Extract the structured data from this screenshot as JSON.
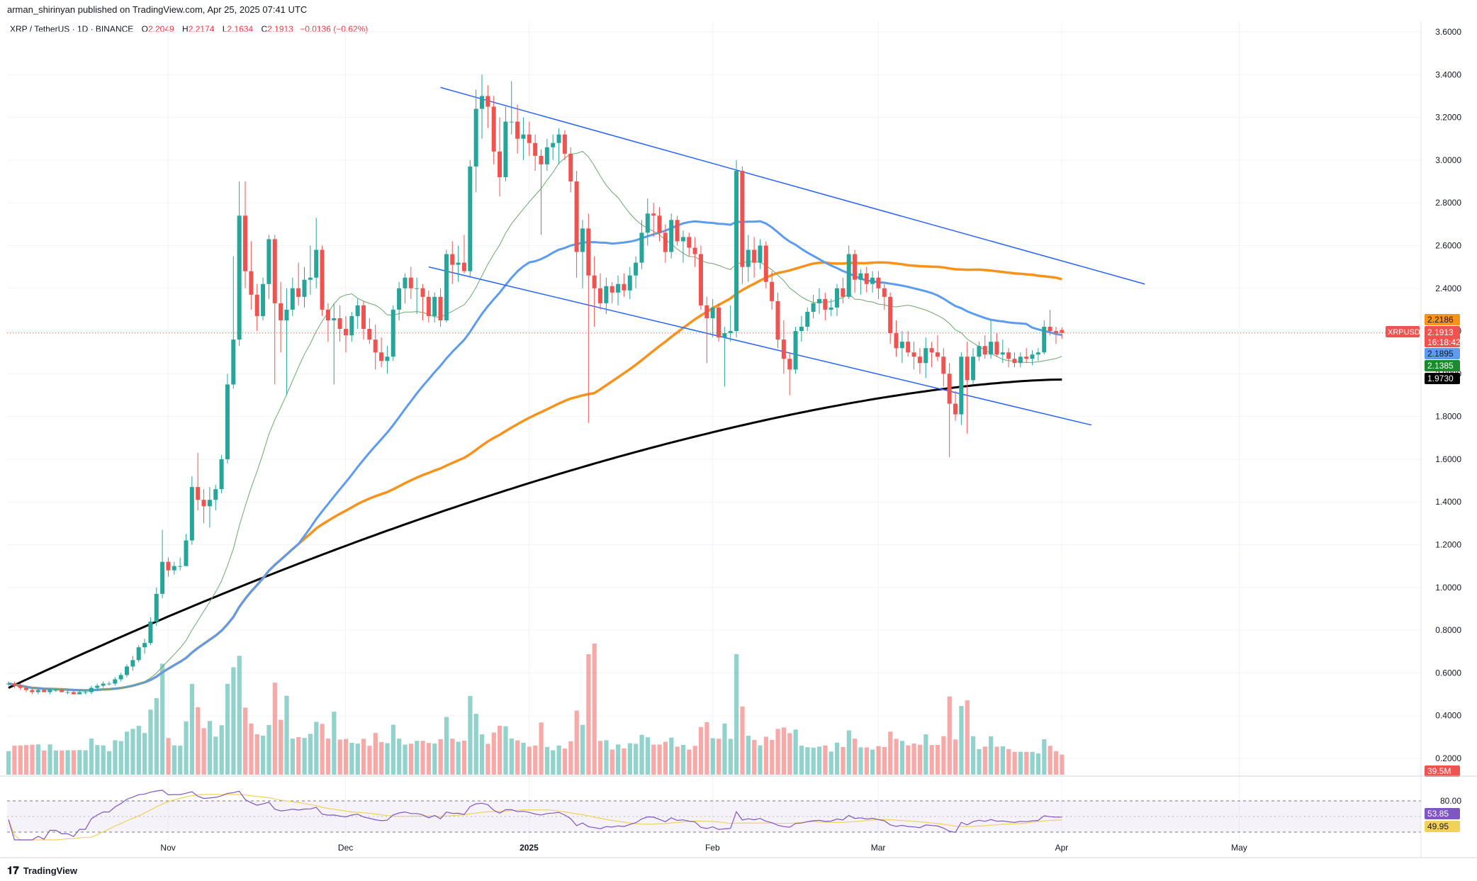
{
  "header": {
    "publisher": "arman_shirinyan published on TradingView.com, Apr 25, 2025 07:41 UTC"
  },
  "legend": {
    "symbol": "XRP / TetherUS · 1D · BINANCE",
    "o_label": "O",
    "o": "2.2049",
    "h_label": "H",
    "h": "2.2174",
    "l_label": "L",
    "l": "2.1634",
    "c_label": "C",
    "c": "2.1913",
    "change": "−0.0136 (−0.62%)"
  },
  "colors": {
    "up": "#26A69A",
    "down": "#EF5350",
    "sma50": "#5B9CF0",
    "sma100": "#F7931A",
    "sma200": "#000000",
    "sma20": "#6BA86B",
    "trendline": "#2962FF",
    "rsi": "#7E57C2",
    "rsi_ma": "#F2D15A"
  },
  "chart_data": {
    "type": "candlestick",
    "symbol": "XRPUSDT",
    "timeframe": "1D",
    "x_ticks": [
      "Nov",
      "Dec",
      "2025",
      "Feb",
      "Mar",
      "Apr",
      "May"
    ],
    "y_ticks": [
      "3.6000",
      "3.4000",
      "3.2000",
      "3.0000",
      "2.8000",
      "2.6000",
      "2.4000",
      "2.2000",
      "2.0000",
      "1.8000",
      "1.6000",
      "1.4000",
      "1.2000",
      "1.0000",
      "0.8000",
      "0.6000",
      "0.4000",
      "0.2000"
    ],
    "ylim": [
      0.2,
      3.6
    ],
    "candles_ohlc": [
      [
        0.55,
        0.56,
        0.54,
        0.55
      ],
      [
        0.55,
        0.56,
        0.53,
        0.54
      ],
      [
        0.54,
        0.55,
        0.52,
        0.53
      ],
      [
        0.53,
        0.54,
        0.51,
        0.52
      ],
      [
        0.52,
        0.53,
        0.5,
        0.51
      ],
      [
        0.51,
        0.53,
        0.5,
        0.52
      ],
      [
        0.52,
        0.53,
        0.51,
        0.51
      ],
      [
        0.51,
        0.53,
        0.5,
        0.52
      ],
      [
        0.52,
        0.53,
        0.51,
        0.52
      ],
      [
        0.52,
        0.53,
        0.51,
        0.51
      ],
      [
        0.51,
        0.52,
        0.5,
        0.51
      ],
      [
        0.51,
        0.52,
        0.5,
        0.5
      ],
      [
        0.5,
        0.52,
        0.5,
        0.51
      ],
      [
        0.51,
        0.52,
        0.5,
        0.51
      ],
      [
        0.51,
        0.54,
        0.5,
        0.53
      ],
      [
        0.53,
        0.55,
        0.52,
        0.54
      ],
      [
        0.54,
        0.56,
        0.53,
        0.55
      ],
      [
        0.55,
        0.56,
        0.54,
        0.55
      ],
      [
        0.55,
        0.58,
        0.54,
        0.57
      ],
      [
        0.57,
        0.6,
        0.56,
        0.59
      ],
      [
        0.59,
        0.64,
        0.58,
        0.63
      ],
      [
        0.63,
        0.68,
        0.61,
        0.66
      ],
      [
        0.66,
        0.73,
        0.65,
        0.72
      ],
      [
        0.72,
        0.76,
        0.69,
        0.74
      ],
      [
        0.74,
        0.86,
        0.73,
        0.84
      ],
      [
        0.84,
        1.0,
        0.82,
        0.97
      ],
      [
        0.97,
        1.27,
        0.95,
        1.12
      ],
      [
        1.12,
        1.14,
        1.05,
        1.08
      ],
      [
        1.08,
        1.12,
        1.06,
        1.1
      ],
      [
        1.1,
        1.14,
        1.08,
        1.1
      ],
      [
        1.1,
        1.25,
        1.1,
        1.22
      ],
      [
        1.22,
        1.52,
        1.2,
        1.47
      ],
      [
        1.47,
        1.63,
        1.36,
        1.41
      ],
      [
        1.41,
        1.46,
        1.3,
        1.38
      ],
      [
        1.38,
        1.47,
        1.28,
        1.41
      ],
      [
        1.41,
        1.48,
        1.36,
        1.46
      ],
      [
        1.46,
        1.62,
        1.44,
        1.6
      ],
      [
        1.6,
        2.0,
        1.58,
        1.95
      ],
      [
        1.95,
        2.55,
        1.93,
        2.16
      ],
      [
        2.16,
        2.9,
        2.13,
        2.74
      ],
      [
        2.74,
        2.9,
        2.4,
        2.48
      ],
      [
        2.48,
        2.62,
        2.3,
        2.37
      ],
      [
        2.37,
        2.42,
        2.2,
        2.27
      ],
      [
        2.27,
        2.45,
        2.25,
        2.42
      ],
      [
        2.42,
        2.65,
        2.35,
        2.63
      ],
      [
        2.63,
        2.65,
        1.95,
        2.33
      ],
      [
        2.33,
        2.43,
        2.1,
        2.25
      ],
      [
        2.25,
        2.4,
        1.9,
        2.3
      ],
      [
        2.3,
        2.45,
        2.27,
        2.4
      ],
      [
        2.4,
        2.52,
        2.32,
        2.36
      ],
      [
        2.36,
        2.5,
        2.31,
        2.44
      ],
      [
        2.44,
        2.6,
        2.37,
        2.45
      ],
      [
        2.45,
        2.73,
        2.4,
        2.58
      ],
      [
        2.58,
        2.6,
        2.27,
        2.3
      ],
      [
        2.3,
        2.33,
        2.15,
        2.25
      ],
      [
        2.25,
        2.33,
        1.95,
        2.26
      ],
      [
        2.26,
        2.32,
        2.15,
        2.21
      ],
      [
        2.21,
        2.27,
        2.1,
        2.18
      ],
      [
        2.18,
        2.29,
        2.15,
        2.27
      ],
      [
        2.27,
        2.35,
        2.21,
        2.32
      ],
      [
        2.32,
        2.34,
        2.16,
        2.21
      ],
      [
        2.21,
        2.26,
        2.14,
        2.16
      ],
      [
        2.16,
        2.23,
        2.02,
        2.1
      ],
      [
        2.1,
        2.17,
        2.03,
        2.06
      ],
      [
        2.06,
        2.13,
        2.0,
        2.08
      ],
      [
        2.08,
        2.32,
        2.06,
        2.3
      ],
      [
        2.3,
        2.43,
        2.25,
        2.4
      ],
      [
        2.4,
        2.47,
        2.33,
        2.45
      ],
      [
        2.45,
        2.5,
        2.35,
        2.4
      ],
      [
        2.4,
        2.45,
        2.28,
        2.4
      ],
      [
        2.4,
        2.42,
        2.25,
        2.36
      ],
      [
        2.36,
        2.39,
        2.24,
        2.27
      ],
      [
        2.27,
        2.38,
        2.24,
        2.36
      ],
      [
        2.36,
        2.4,
        2.22,
        2.25
      ],
      [
        2.25,
        2.58,
        2.24,
        2.56
      ],
      [
        2.56,
        2.62,
        2.42,
        2.51
      ],
      [
        2.51,
        2.6,
        2.43,
        2.52
      ],
      [
        2.52,
        2.65,
        2.47,
        2.48
      ],
      [
        2.48,
        3.0,
        2.45,
        2.97
      ],
      [
        2.97,
        3.33,
        2.85,
        3.24
      ],
      [
        3.24,
        3.4,
        3.1,
        3.3
      ],
      [
        3.3,
        3.35,
        3.15,
        3.25
      ],
      [
        3.25,
        3.3,
        2.98,
        3.04
      ],
      [
        3.04,
        3.2,
        2.83,
        2.92
      ],
      [
        2.92,
        3.25,
        2.9,
        3.18
      ],
      [
        3.18,
        3.37,
        3.12,
        3.18
      ],
      [
        3.18,
        3.26,
        3.03,
        3.1
      ],
      [
        3.1,
        3.2,
        3.0,
        3.12
      ],
      [
        3.12,
        3.18,
        3.02,
        3.08
      ],
      [
        3.08,
        3.12,
        2.95,
        3.02
      ],
      [
        3.02,
        3.05,
        2.65,
        2.98
      ],
      [
        2.98,
        3.1,
        2.95,
        3.06
      ],
      [
        3.06,
        3.12,
        3.0,
        3.08
      ],
      [
        3.08,
        3.15,
        2.98,
        3.12
      ],
      [
        3.12,
        3.14,
        3.0,
        3.03
      ],
      [
        3.03,
        3.06,
        2.85,
        2.9
      ],
      [
        2.9,
        2.95,
        2.45,
        2.57
      ],
      [
        2.57,
        2.72,
        2.4,
        2.68
      ],
      [
        2.68,
        2.75,
        1.77,
        2.46
      ],
      [
        2.46,
        2.55,
        2.22,
        2.4
      ],
      [
        2.4,
        2.47,
        2.3,
        2.33
      ],
      [
        2.33,
        2.45,
        2.28,
        2.41
      ],
      [
        2.41,
        2.43,
        2.33,
        2.38
      ],
      [
        2.38,
        2.46,
        2.32,
        2.42
      ],
      [
        2.42,
        2.47,
        2.36,
        2.39
      ],
      [
        2.39,
        2.5,
        2.35,
        2.46
      ],
      [
        2.46,
        2.55,
        2.4,
        2.52
      ],
      [
        2.52,
        2.72,
        2.49,
        2.66
      ],
      [
        2.66,
        2.82,
        2.6,
        2.75
      ],
      [
        2.75,
        2.8,
        2.64,
        2.74
      ],
      [
        2.74,
        2.78,
        2.62,
        2.66
      ],
      [
        2.66,
        2.7,
        2.52,
        2.57
      ],
      [
        2.57,
        2.75,
        2.54,
        2.72
      ],
      [
        2.72,
        2.74,
        2.6,
        2.62
      ],
      [
        2.62,
        2.67,
        2.52,
        2.64
      ],
      [
        2.64,
        2.66,
        2.55,
        2.59
      ],
      [
        2.59,
        2.64,
        2.5,
        2.56
      ],
      [
        2.56,
        2.6,
        2.3,
        2.32
      ],
      [
        2.32,
        2.36,
        2.05,
        2.26
      ],
      [
        2.26,
        2.35,
        2.17,
        2.31
      ],
      [
        2.31,
        2.33,
        2.15,
        2.17
      ],
      [
        2.17,
        2.22,
        1.94,
        2.19
      ],
      [
        2.19,
        2.32,
        2.15,
        2.2
      ],
      [
        2.2,
        3.0,
        2.17,
        2.95
      ],
      [
        2.95,
        2.97,
        2.42,
        2.5
      ],
      [
        2.5,
        2.65,
        2.43,
        2.58
      ],
      [
        2.58,
        2.64,
        2.45,
        2.52
      ],
      [
        2.52,
        2.63,
        2.49,
        2.6
      ],
      [
        2.6,
        2.62,
        2.4,
        2.43
      ],
      [
        2.43,
        2.48,
        2.3,
        2.34
      ],
      [
        2.34,
        2.38,
        2.12,
        2.16
      ],
      [
        2.16,
        2.25,
        2.0,
        2.07
      ],
      [
        2.07,
        2.1,
        1.9,
        2.02
      ],
      [
        2.02,
        2.22,
        2.0,
        2.2
      ],
      [
        2.2,
        2.27,
        2.15,
        2.22
      ],
      [
        2.22,
        2.31,
        2.2,
        2.29
      ],
      [
        2.29,
        2.37,
        2.26,
        2.33
      ],
      [
        2.33,
        2.4,
        2.28,
        2.35
      ],
      [
        2.35,
        2.38,
        2.25,
        2.3
      ],
      [
        2.3,
        2.35,
        2.27,
        2.31
      ],
      [
        2.31,
        2.42,
        2.27,
        2.4
      ],
      [
        2.4,
        2.45,
        2.33,
        2.36
      ],
      [
        2.36,
        2.6,
        2.35,
        2.56
      ],
      [
        2.56,
        2.58,
        2.38,
        2.44
      ],
      [
        2.44,
        2.49,
        2.37,
        2.47
      ],
      [
        2.47,
        2.5,
        2.38,
        2.42
      ],
      [
        2.42,
        2.48,
        2.38,
        2.45
      ],
      [
        2.45,
        2.48,
        2.35,
        2.4
      ],
      [
        2.4,
        2.42,
        2.3,
        2.36
      ],
      [
        2.36,
        2.38,
        2.14,
        2.19
      ],
      [
        2.19,
        2.25,
        2.08,
        2.12
      ],
      [
        2.12,
        2.2,
        2.05,
        2.15
      ],
      [
        2.15,
        2.2,
        2.08,
        2.1
      ],
      [
        2.1,
        2.15,
        2.02,
        2.08
      ],
      [
        2.08,
        2.12,
        2.0,
        2.05
      ],
      [
        2.05,
        2.17,
        1.98,
        2.12
      ],
      [
        2.12,
        2.15,
        2.03,
        2.1
      ],
      [
        2.1,
        2.18,
        2.06,
        2.08
      ],
      [
        2.08,
        2.12,
        1.94,
        2.0
      ],
      [
        2.0,
        2.05,
        1.61,
        1.86
      ],
      [
        1.86,
        1.92,
        1.78,
        1.81
      ],
      [
        1.81,
        2.1,
        1.76,
        2.08
      ],
      [
        2.08,
        2.15,
        1.72,
        1.97
      ],
      [
        1.97,
        2.12,
        1.95,
        2.08
      ],
      [
        2.08,
        2.15,
        2.06,
        2.13
      ],
      [
        2.13,
        2.18,
        2.07,
        2.09
      ],
      [
        2.09,
        2.25,
        2.07,
        2.15
      ],
      [
        2.15,
        2.19,
        2.08,
        2.09
      ],
      [
        2.09,
        2.16,
        2.05,
        2.1
      ],
      [
        2.1,
        2.12,
        2.03,
        2.07
      ],
      [
        2.07,
        2.1,
        2.03,
        2.05
      ],
      [
        2.05,
        2.1,
        2.03,
        2.08
      ],
      [
        2.08,
        2.12,
        2.05,
        2.07
      ],
      [
        2.07,
        2.11,
        2.04,
        2.09
      ],
      [
        2.09,
        2.12,
        2.06,
        2.1
      ],
      [
        2.1,
        2.25,
        2.09,
        2.22
      ],
      [
        2.22,
        2.3,
        2.18,
        2.2
      ],
      [
        2.2,
        2.22,
        2.14,
        2.19
      ],
      [
        2.205,
        2.217,
        2.163,
        2.191
      ]
    ],
    "volume_labels": "",
    "moving_averages": [
      {
        "name": "sma200",
        "value": "1.9730"
      },
      {
        "name": "sma100",
        "value": "2.2186"
      },
      {
        "name": "sma50",
        "value": "2.1895"
      },
      {
        "name": "sma20",
        "value": "2.1385"
      }
    ],
    "price_label": {
      "symbol": "XRPUSDT",
      "price": "2.1913",
      "countdown": "16:18:42"
    },
    "volume_value": "39.5M",
    "rsi": {
      "upper": "80.00",
      "value": "53.85",
      "ma": "49.95"
    }
  },
  "footer": {
    "brand": "TradingView"
  }
}
